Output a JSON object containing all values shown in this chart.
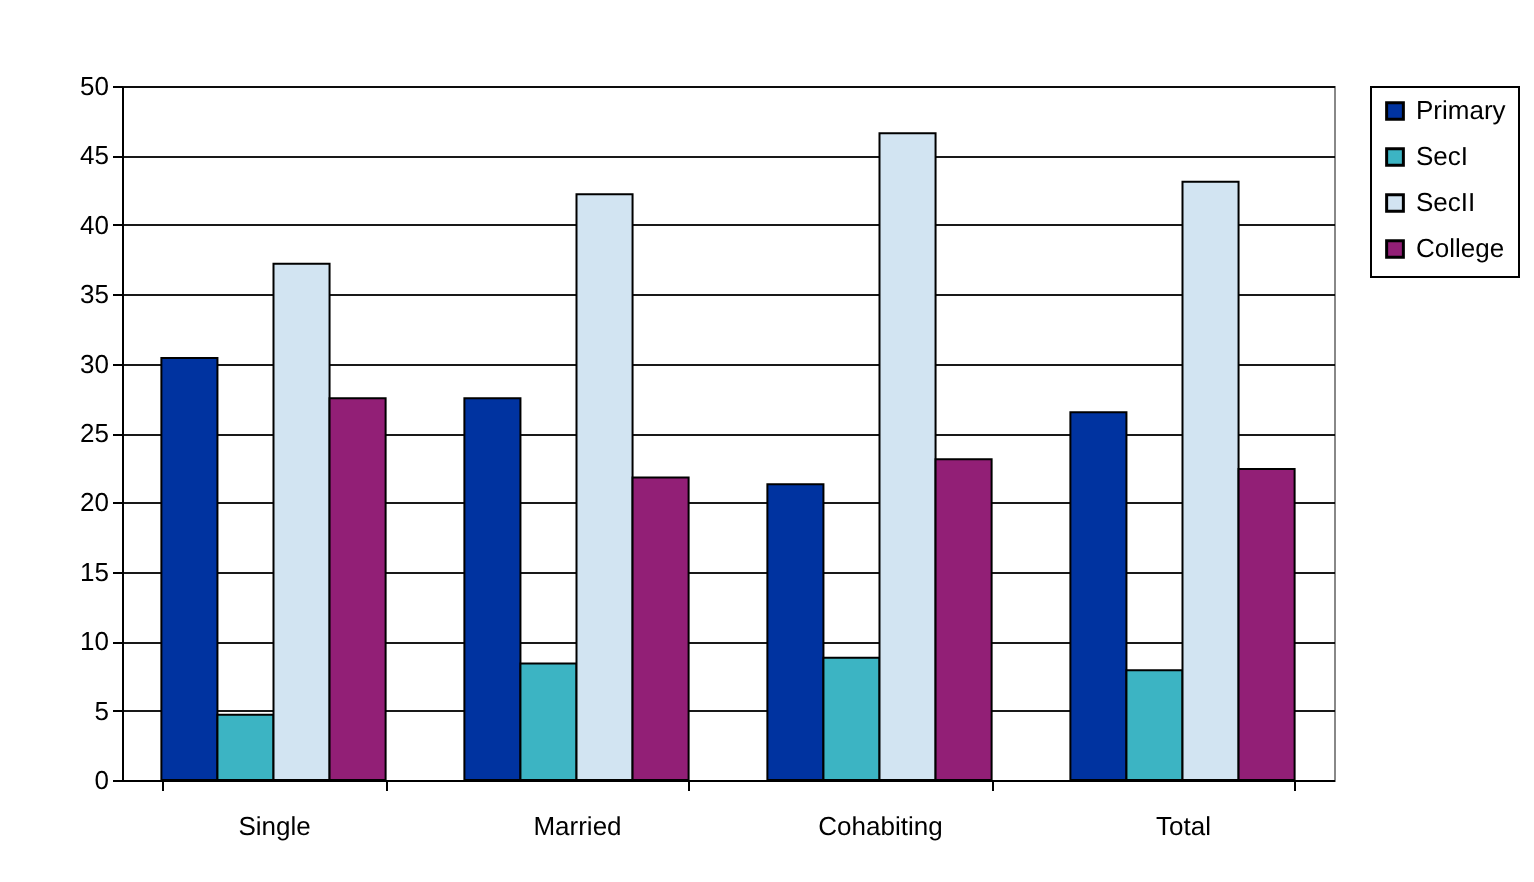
{
  "chart_data": {
    "type": "bar",
    "categories": [
      "Single",
      "Married",
      "Cohabiting",
      "Total"
    ],
    "series": [
      {
        "name": "Primary",
        "color": "#0033a0",
        "values": [
          30.4,
          27.5,
          21.3,
          26.5
        ]
      },
      {
        "name": "SecI",
        "color": "#3cb4c3",
        "values": [
          4.7,
          8.4,
          8.8,
          7.9
        ]
      },
      {
        "name": "SecII",
        "color": "#d2e4f2",
        "values": [
          37.2,
          42.2,
          46.6,
          43.1
        ]
      },
      {
        "name": "College",
        "color": "#921f76",
        "values": [
          27.5,
          21.8,
          23.1,
          22.4
        ]
      }
    ],
    "ylim": [
      0,
      50
    ],
    "yticks": [
      0,
      5,
      10,
      15,
      20,
      25,
      30,
      35,
      40,
      45,
      50
    ],
    "grid": "y",
    "legend": "right"
  }
}
